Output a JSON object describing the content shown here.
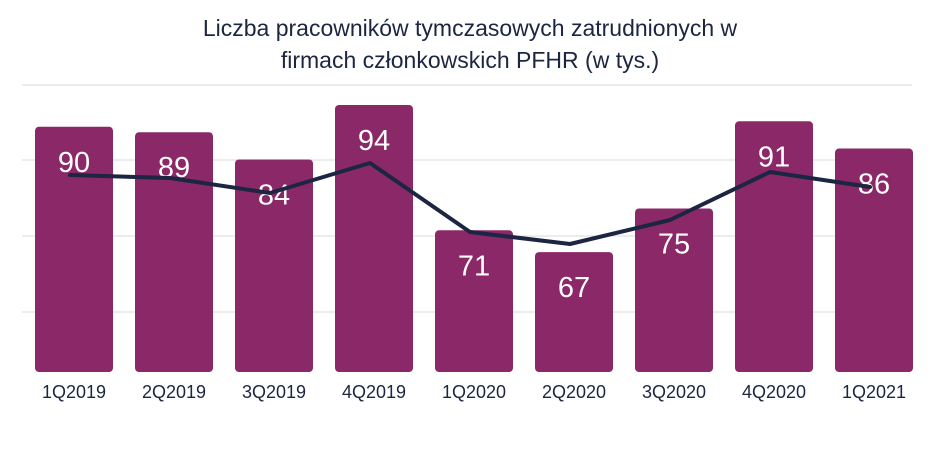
{
  "chart_data": {
    "type": "bar",
    "title_lines": [
      "Liczba pracowników tymczasowych zatrudnionych w",
      "firmach członkowskich PFHR (w tys.)"
    ],
    "categories": [
      "1Q2019",
      "2Q2019",
      "3Q2019",
      "4Q2019",
      "1Q2020",
      "2Q2020",
      "3Q2020",
      "4Q2020",
      "1Q2021"
    ],
    "series": [
      {
        "type": "bar",
        "values": [
          90,
          89,
          84,
          94,
          71,
          67,
          75,
          91,
          86
        ]
      },
      {
        "type": "line",
        "values": [
          90,
          89,
          84,
          94,
          71,
          67,
          75,
          91,
          86
        ]
      }
    ],
    "data_labels": [
      "90",
      "89",
      "84",
      "94",
      "71",
      "67",
      "75",
      "91",
      "86"
    ],
    "grid": true,
    "colors": {
      "bar": "#8b2868",
      "line": "#1c2541",
      "label": "#ffffff",
      "axis_text": "#1c2541",
      "grid": "#d9d9d9"
    }
  }
}
